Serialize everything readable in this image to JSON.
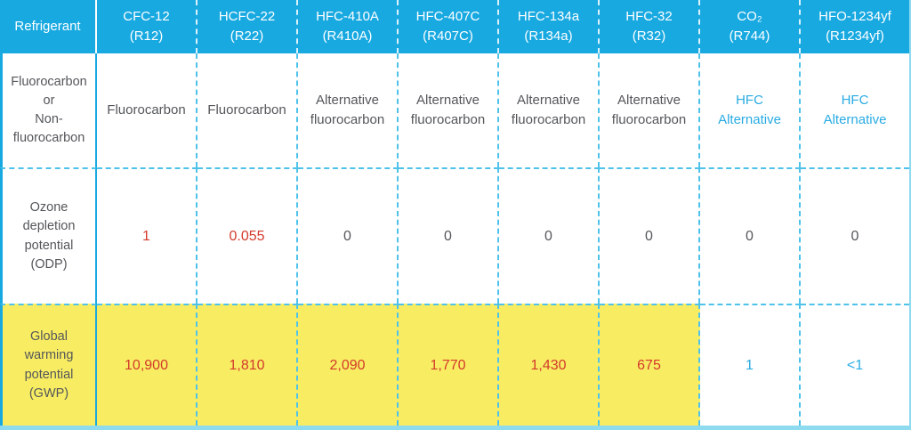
{
  "chart_data": {
    "type": "table",
    "corner_header": "Refrigerant",
    "columns": [
      {
        "name": "CFC-12",
        "code": "(R12)"
      },
      {
        "name": "HCFC-22",
        "code": "(R22)"
      },
      {
        "name": "HFC-410A",
        "code": "(R410A)"
      },
      {
        "name": "HFC-407C",
        "code": "(R407C)"
      },
      {
        "name": "HFC-134a",
        "code": "(R134a)"
      },
      {
        "name": "HFC-32",
        "code": "(R32)"
      },
      {
        "name": "CO₂",
        "code": "(R744)"
      },
      {
        "name": "HFO-1234yf",
        "code": "(R1234yf)"
      }
    ],
    "rows": [
      {
        "label": "Fluorocarbon\nor\nNon-fluorocarbon",
        "cells": [
          {
            "text": "Fluorocarbon",
            "color": "gray"
          },
          {
            "text": "Fluorocarbon",
            "color": "gray"
          },
          {
            "text": "Alternative\nfluorocarbon",
            "color": "gray"
          },
          {
            "text": "Alternative\nfluorocarbon",
            "color": "gray"
          },
          {
            "text": "Alternative\nfluorocarbon",
            "color": "gray"
          },
          {
            "text": "Alternative\nfluorocarbon",
            "color": "gray"
          },
          {
            "text": "HFC\nAlternative",
            "color": "blue"
          },
          {
            "text": "HFC\nAlternative",
            "color": "blue"
          }
        ]
      },
      {
        "label": "Ozone\ndepletion\npotential\n(ODP)",
        "cells": [
          {
            "text": "1",
            "color": "red"
          },
          {
            "text": "0.055",
            "color": "red"
          },
          {
            "text": "0",
            "color": "gray"
          },
          {
            "text": "0",
            "color": "gray"
          },
          {
            "text": "0",
            "color": "gray"
          },
          {
            "text": "0",
            "color": "gray"
          },
          {
            "text": "0",
            "color": "gray"
          },
          {
            "text": "0",
            "color": "gray"
          }
        ]
      },
      {
        "label": "Global\nwarming\npotential\n(GWP)",
        "highlighted": true,
        "cells": [
          {
            "text": "10,900",
            "color": "red"
          },
          {
            "text": "1,810",
            "color": "red"
          },
          {
            "text": "2,090",
            "color": "red"
          },
          {
            "text": "1,770",
            "color": "red"
          },
          {
            "text": "1,430",
            "color": "red"
          },
          {
            "text": "675",
            "color": "red"
          },
          {
            "text": "1",
            "color": "blue"
          },
          {
            "text": "<1",
            "color": "blue"
          }
        ]
      }
    ]
  },
  "colors": {
    "header_bg": "#18a9e1",
    "solid_cyan": "#18a9e1",
    "dash_cyan": "#4fc2ea",
    "edge_cyan": "#8edaef",
    "highlight_yellow": "#f8ed62",
    "text_gray": "#54565a",
    "text_red": "#d33a2c",
    "text_blue": "#29abe2",
    "header_text": "#ffffff"
  }
}
